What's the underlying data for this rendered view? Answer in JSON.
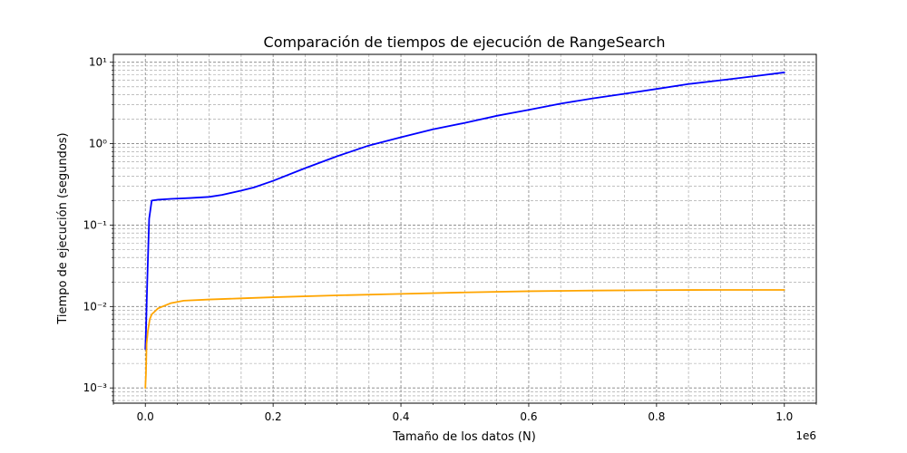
{
  "chart_data": {
    "type": "line",
    "title": "Comparación de tiempos de ejecución de RangeSearch",
    "xlabel": "Tamaño de los datos (N)",
    "ylabel": "Tiempo de ejecución (segundos)",
    "x_offset_text": "1e6",
    "x_scale": "linear",
    "y_scale": "log",
    "xlim": [
      -50000,
      1050000
    ],
    "ylim": [
      0.00065,
      12.5
    ],
    "x_ticks": [
      0,
      200000,
      400000,
      600000,
      800000,
      1000000
    ],
    "x_tick_labels": [
      "0.0",
      "0.2",
      "0.4",
      "0.6",
      "0.8",
      "1.0"
    ],
    "y_ticks": [
      0.001,
      0.01,
      0.1,
      1,
      10
    ],
    "y_tick_labels": [
      "10⁻³",
      "10⁻²",
      "10⁻¹",
      "10⁰",
      "10¹"
    ],
    "grid": true,
    "series": [
      {
        "color": "#0000ff",
        "x": [
          0,
          1000,
          3000,
          6000,
          10000,
          20000,
          40000,
          70000,
          100000,
          120000,
          150000,
          170000,
          200000,
          250000,
          300000,
          350000,
          400000,
          450000,
          500000,
          550000,
          600000,
          650000,
          700000,
          750000,
          800000,
          850000,
          900000,
          950000,
          1000000
        ],
        "y": [
          0.003,
          0.005,
          0.02,
          0.12,
          0.2,
          0.205,
          0.21,
          0.215,
          0.222,
          0.235,
          0.265,
          0.29,
          0.35,
          0.5,
          0.7,
          0.95,
          1.2,
          1.5,
          1.8,
          2.2,
          2.6,
          3.1,
          3.6,
          4.1,
          4.7,
          5.4,
          6.0,
          6.7,
          7.5
        ]
      },
      {
        "color": "#ffa500",
        "x": [
          0,
          1000,
          2000,
          4000,
          7000,
          10000,
          20000,
          40000,
          60000,
          100000,
          150000,
          200000,
          300000,
          400000,
          500000,
          600000,
          700000,
          800000,
          900000,
          1000000
        ],
        "y": [
          0.001,
          0.0015,
          0.0035,
          0.005,
          0.007,
          0.008,
          0.0095,
          0.011,
          0.0118,
          0.0122,
          0.0126,
          0.013,
          0.0137,
          0.0143,
          0.0149,
          0.0154,
          0.0157,
          0.0159,
          0.016,
          0.016
        ]
      }
    ]
  }
}
